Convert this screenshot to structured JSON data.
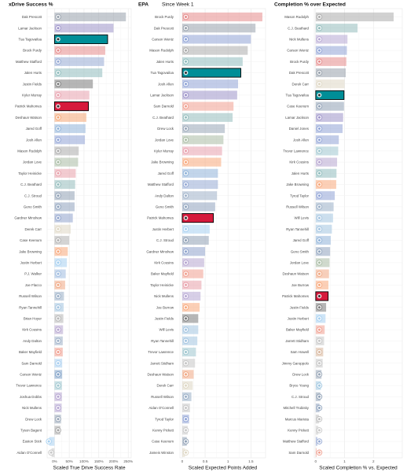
{
  "chart_data": [
    {
      "type": "bar",
      "orientation": "horizontal",
      "title": "xDrive Success %",
      "subtitle": "",
      "xlabel": "Scaled True Drive Success Rate",
      "ylabel": "",
      "xlim": [
        -0.25,
        2.6
      ],
      "xticks": [
        0,
        0.5,
        1,
        1.5,
        2,
        2.5
      ],
      "xtick_labels": [
        "0%",
        "50%",
        "100%",
        "150%",
        "200%",
        "250%"
      ],
      "grid": true,
      "legend": "none",
      "highlight_color": "#d61a3c",
      "highlight_color_2": "#008e97",
      "categories": [
        "Dak Prescott",
        "Lamar Jackson",
        "Tua Tagovailoa",
        "Brock Purdy",
        "Matthew Stafford",
        "Jalen Hurts",
        "Justin Fields",
        "Kyler Murray",
        "Patrick Mahomes",
        "Deshaun Watson",
        "Jared Goff",
        "Josh Allen",
        "Mason Rudolph",
        "Jordan Love",
        "Taylor Heinicke",
        "C.J. Beathard",
        "C.J. Stroud",
        "Geno Smith",
        "Gardner Minshew",
        "Derek Carr",
        "Case Keenum",
        "Jake Browning",
        "Justin Herbert",
        "P.J. Walker",
        "Joe Flacco",
        "Russell Wilson",
        "Ryan Tannehill",
        "Brian Hoyer",
        "Kirk Cousins",
        "Andy Dalton",
        "Baker Mayfield",
        "Sam Darnold",
        "Carson Wentz",
        "Trevor Lawrence",
        "Joshua Dobbs",
        "Nick Mullens",
        "Drew Lock",
        "Tyson Bagent",
        "Easton Stick",
        "Aidan O'Connell"
      ],
      "values": [
        2.42,
        2.0,
        1.8,
        1.72,
        1.68,
        1.62,
        1.3,
        1.18,
        1.15,
        1.08,
        1.05,
        1.03,
        0.82,
        0.8,
        0.72,
        0.7,
        0.68,
        0.68,
        0.62,
        0.55,
        0.5,
        0.45,
        0.42,
        0.38,
        0.36,
        0.32,
        0.31,
        0.3,
        0.29,
        0.28,
        0.28,
        0.26,
        0.26,
        0.25,
        0.25,
        0.24,
        0.22,
        0.2,
        -0.18,
        -0.1
      ],
      "colors": [
        "#97a1ac",
        "#9d93c9",
        "#008e97",
        "#e58a8a",
        "#95a9d4",
        "#8fbcbd",
        "#7a7a7a",
        "#e8a0ad",
        "#d61a3c",
        "#f4a674",
        "#8fb2d8",
        "#8fa3d6",
        "#ababab",
        "#a9bca4",
        "#e8a0aa",
        "#93bcbc",
        "#8fa0b5",
        "#8fa3bd",
        "#8fa3cc",
        "#ded7c4",
        "#b1b1b1",
        "#f7a77a",
        "#a5cff0",
        "#9fbce0",
        "#f0a883",
        "#99aec6",
        "#a3c4e0",
        "#b7b7b7",
        "#b6a5d0",
        "#9fb1c8",
        "#f09f8f",
        "#a9cff1",
        "#7ea0c7",
        "#9fc6cf",
        "#b7a6d1",
        "#b7a8d3",
        "#97a5b7",
        "#a5a5a5",
        "#a7d0f0",
        "#c6c6c6"
      ],
      "highlight": [
        "",
        "",
        "teal",
        "",
        "",
        "",
        "",
        "",
        "red",
        "",
        "",
        "",
        "",
        "",
        "",
        "",
        "",
        "",
        "",
        "",
        "",
        "",
        "",
        "",
        "",
        "",
        "",
        "",
        "",
        "",
        "",
        "",
        "",
        "",
        "",
        "",
        "",
        "",
        "",
        ""
      ],
      "icons": [
        "star-logo-icon",
        "raven-logo-icon",
        "dolphin-logo-icon",
        "sf-oval-logo-icon",
        "ram-horn-logo-icon",
        "eagle-wing-logo-icon",
        "bear-head-logo-icon",
        "cardinal-head-logo-icon",
        "arrowhead-logo-icon",
        "brown-helmet-logo-icon",
        "lion-logo-icon",
        "charging-buffalo-logo-icon",
        "steelers-logo-icon",
        "g-oval-logo-icon",
        "falcon-logo-icon",
        "jaguar-logo-icon",
        "bull-head-logo-icon",
        "seahawk-logo-icon",
        "horseshoe-logo-icon",
        "fleur-de-lis-logo-icon",
        "bull-head-logo-icon",
        "tiger-b-logo-icon",
        "bolt-logo-icon",
        "brown-helmet-logo-icon",
        "brown-helmet-logo-icon",
        "broncos-head-logo-icon",
        "titans-t-logo-icon",
        "raider-shield-logo-icon",
        "viking-horn-logo-icon",
        "panther-logo-icon",
        "buccaneer-flag-logo-icon",
        "jets-logo-icon",
        "ram-horn-logo-icon",
        "jaguar-logo-icon",
        "viking-horn-logo-icon",
        "viking-horn-logo-icon",
        "seahawk-logo-icon",
        "bear-c-logo-icon",
        "bolt-logo-icon",
        "raider-shield-logo-icon"
      ]
    },
    {
      "type": "bar",
      "orientation": "horizontal",
      "title": "EPA",
      "subtitle": "Since Week 1",
      "xlabel": "Scaled Expected Points Added",
      "ylabel": "",
      "xlim": [
        -0.05,
        1.82
      ],
      "xticks": [
        0,
        0.5,
        1,
        1.5
      ],
      "xtick_labels": [
        "0",
        "0.5",
        "1",
        "1.5"
      ],
      "grid": true,
      "legend": "none",
      "categories": [
        "Brock Purdy",
        "Dak Prescott",
        "Carson Wentz",
        "Mason Rudolph",
        "Jalen Hurts",
        "Tua Tagovailoa",
        "Josh Allen",
        "Lamar Jackson",
        "Sam Darnold",
        "C.J. Beathard",
        "Drew Lock",
        "Jordan Love",
        "Kyler Murray",
        "Jake Browning",
        "Jared Goff",
        "Matthew Stafford",
        "Andy Dalton",
        "Geno Smith",
        "Patrick Mahomes",
        "Justin Herbert",
        "C.J. Stroud",
        "Gardner Minshew",
        "Kirk Cousins",
        "Baker Mayfield",
        "Taylor Heinicke",
        "Nick Mullens",
        "Joe Burrow",
        "Justin Fields",
        "Will Levis",
        "Ryan Tannehill",
        "Trevor Lawrence",
        "Jarrett Stidham",
        "Deshaun Watson",
        "Derek Carr",
        "Russell Wilson",
        "Aidan O'Connell",
        "Tyrod Taylor",
        "Kenny Pickett",
        "Case Keenum",
        "Jameis Winston"
      ],
      "values": [
        1.75,
        1.6,
        1.5,
        1.43,
        1.32,
        1.28,
        1.22,
        1.2,
        1.12,
        1.1,
        0.93,
        0.9,
        0.87,
        0.85,
        0.78,
        0.78,
        0.76,
        0.72,
        0.68,
        0.6,
        0.58,
        0.5,
        0.48,
        0.46,
        0.42,
        0.4,
        0.38,
        0.35,
        0.35,
        0.33,
        0.3,
        0.28,
        0.25,
        0.23,
        0.2,
        0.17,
        0.15,
        0.12,
        0.1,
        0.06
      ],
      "colors": [
        "#e58a8a",
        "#97a1ac",
        "#8fa3d6",
        "#ababab",
        "#8fbcbd",
        "#008e97",
        "#8fa3d6",
        "#9d93c9",
        "#f09f8f",
        "#93bcbc",
        "#97a5b7",
        "#a9bca4",
        "#e8a0ad",
        "#f7a77a",
        "#8fb2d8",
        "#95a9d4",
        "#9fb1c8",
        "#8fa3bd",
        "#d61a3c",
        "#a5cff0",
        "#8fa0b5",
        "#8fa3cc",
        "#b6a5d0",
        "#f09f8f",
        "#e8a0aa",
        "#b7a8d3",
        "#f7a77a",
        "#7a7a7a",
        "#a3c4e0",
        "#a3c4e0",
        "#9fc6cf",
        "#c6c6c6",
        "#f0a883",
        "#ded7c4",
        "#99aec6",
        "#c6c6c6",
        "#8fa3d6",
        "#c9c9c9",
        "#8fa0b5",
        "#ded7c4"
      ],
      "highlight": [
        "",
        "",
        "",
        "",
        "",
        "teal",
        "",
        "",
        "",
        "",
        "",
        "",
        "",
        "",
        "",
        "",
        "",
        "",
        "red",
        "",
        "",
        "",
        "",
        "",
        "",
        "",
        "",
        "",
        "",
        "",
        "",
        "",
        "",
        "",
        "",
        "",
        "",
        "",
        "",
        ""
      ],
      "icons": [
        "sf-oval-logo-icon",
        "star-logo-icon",
        "giants-ny-logo-icon",
        "steelers-logo-icon",
        "eagle-wing-logo-icon",
        "dolphin-logo-icon",
        "charging-buffalo-logo-icon",
        "raven-logo-icon",
        "sf-oval-logo-icon",
        "jaguar-logo-icon",
        "seahawk-logo-icon",
        "g-oval-logo-icon",
        "cardinal-head-logo-icon",
        "tiger-b-logo-icon",
        "lion-logo-icon",
        "ram-horn-logo-icon",
        "panther-logo-icon",
        "seahawk-logo-icon",
        "arrowhead-logo-icon",
        "bolt-logo-icon",
        "bull-head-logo-icon",
        "horseshoe-logo-icon",
        "viking-horn-logo-icon",
        "buccaneer-flag-logo-icon",
        "falcon-logo-icon",
        "viking-horn-logo-icon",
        "tiger-b-logo-icon",
        "bear-head-logo-icon",
        "titans-t-logo-icon",
        "titans-t-logo-icon",
        "jaguar-logo-icon",
        "broncos-head-logo-icon",
        "brown-helmet-logo-icon",
        "fleur-de-lis-logo-icon",
        "broncos-head-logo-icon",
        "raider-shield-logo-icon",
        "giants-ny-logo-icon",
        "steelers-logo-icon",
        "bull-head-logo-icon",
        "fleur-de-lis-logo-icon"
      ]
    },
    {
      "type": "bar",
      "orientation": "horizontal",
      "title": "Completion % over Expected",
      "subtitle": "",
      "xlabel": "Scaled Completion % vs. Expected",
      "ylabel": "",
      "xlim": [
        -0.05,
        3.0
      ],
      "xticks": [
        0,
        1,
        2
      ],
      "xtick_labels": [
        "0",
        "1",
        "2"
      ],
      "grid": true,
      "legend": "none",
      "categories": [
        "Mason Rudolph",
        "C.J. Beathard",
        "Nick Mullens",
        "Carson Wentz",
        "Brock Purdy",
        "Dak Prescott",
        "Derek Carr",
        "Tua Tagovailoa",
        "Case Keenum",
        "Lamar Jackson",
        "Daniel Jones",
        "Josh Allen",
        "Trevor Lawrence",
        "Kirk Cousins",
        "Jalen Hurts",
        "Jake Browning",
        "Tyrod Taylor",
        "Russell Wilson",
        "Will Levis",
        "Ryan Tannehill",
        "Jared Goff",
        "Geno Smith",
        "Jordan Love",
        "Deshaun Watson",
        "Joe Burrow",
        "Patrick Mahomes",
        "Justin Fields",
        "Justin Herbert",
        "Baker Mayfield",
        "Jarrett Stidham",
        "Sam Howell",
        "Jimmy Garoppolo",
        "Drew Lock",
        "Bryce Young",
        "C.J. Stroud",
        "Mitchell Trubisky",
        "Marcus Mariota",
        "Kenny Pickett",
        "Matthew Stafford",
        "Sam Darnold"
      ],
      "values": [
        2.7,
        1.45,
        1.1,
        1.08,
        1.06,
        1.04,
        1.0,
        0.98,
        0.98,
        0.95,
        0.93,
        0.8,
        0.78,
        0.74,
        0.72,
        0.71,
        0.66,
        0.62,
        0.6,
        0.56,
        0.52,
        0.5,
        0.48,
        0.46,
        0.44,
        0.43,
        0.36,
        0.34,
        0.31,
        0.29,
        0.26,
        0.24,
        0.2,
        0.18,
        0.16,
        0.13,
        0.11,
        0.09,
        0.06,
        0.03
      ],
      "colors": [
        "#ababab",
        "#93bcbc",
        "#b7a8d3",
        "#8fa3d6",
        "#e58a8a",
        "#97a1ac",
        "#ded7c4",
        "#008e97",
        "#8fa0b5",
        "#9d93c9",
        "#8fa3d6",
        "#8fa3d6",
        "#9fc6cf",
        "#b6a5d0",
        "#8fbcbd",
        "#f7a77a",
        "#8fa3d6",
        "#99aec6",
        "#a3c4e0",
        "#a3c4e0",
        "#8fb2d8",
        "#8fa3bd",
        "#a9bca4",
        "#f0a883",
        "#f7a77a",
        "#d61a3c",
        "#7a7a7a",
        "#a5cff0",
        "#f09f8f",
        "#c6c6c6",
        "#d9b89f",
        "#c6c6c6",
        "#97a5b7",
        "#9fc6e0",
        "#8fa0b5",
        "#8fa3bd",
        "#bdbdbd",
        "#c9c9c9",
        "#95a9d4",
        "#f09f8f"
      ],
      "highlight": [
        "",
        "",
        "",
        "",
        "",
        "",
        "",
        "teal",
        "",
        "",
        "",
        "",
        "",
        "",
        "",
        "",
        "",
        "",
        "",
        "",
        "",
        "",
        "",
        "",
        "",
        "red",
        "",
        "",
        "",
        "",
        "",
        "",
        "",
        "",
        "",
        "",
        "",
        "",
        "",
        ""
      ],
      "icons": [
        "steelers-logo-icon",
        "jaguar-logo-icon",
        "viking-horn-logo-icon",
        "giants-ny-logo-icon",
        "sf-oval-logo-icon",
        "star-logo-icon",
        "fleur-de-lis-logo-icon",
        "dolphin-logo-icon",
        "bull-head-logo-icon",
        "raven-logo-icon",
        "giants-ny-logo-icon",
        "charging-buffalo-logo-icon",
        "jaguar-logo-icon",
        "viking-horn-logo-icon",
        "eagle-wing-logo-icon",
        "tiger-b-logo-icon",
        "giants-ny-logo-icon",
        "broncos-head-logo-icon",
        "titans-t-logo-icon",
        "titans-t-logo-icon",
        "lion-logo-icon",
        "seahawk-logo-icon",
        "g-oval-logo-icon",
        "brown-helmet-logo-icon",
        "tiger-b-logo-icon",
        "arrowhead-logo-icon",
        "bear-head-logo-icon",
        "bolt-logo-icon",
        "buccaneer-flag-logo-icon",
        "broncos-head-logo-icon",
        "commanders-logo-icon",
        "raider-shield-logo-icon",
        "seahawk-logo-icon",
        "panther-logo-icon",
        "bull-head-logo-icon",
        "steelers-logo-icon",
        "falcon-logo-icon",
        "steelers-logo-icon",
        "ram-horn-logo-icon",
        "sf-oval-logo-icon"
      ]
    }
  ]
}
